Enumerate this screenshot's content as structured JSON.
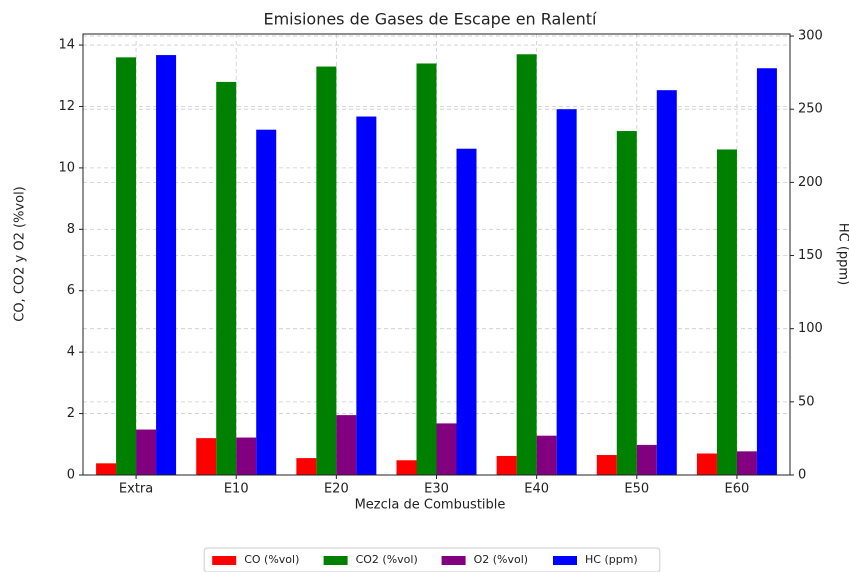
{
  "chart_data": {
    "type": "bar",
    "title": "Emisiones de Gases de Escape en Ralentí",
    "x_label": "Mezcla de Combustible",
    "y_label": "CO, CO2 y O2 (%vol)",
    "y2_label": "HC (ppm)",
    "categories": [
      "Extra",
      "E10",
      "E20",
      "E30",
      "E40",
      "E50",
      "E60"
    ],
    "series": [
      {
        "name": "CO (%vol)",
        "color": "#ff0000",
        "values": [
          0.38,
          1.2,
          0.55,
          0.48,
          0.62,
          0.65,
          0.7
        ]
      },
      {
        "name": "CO2 (%vol)",
        "color": "#008000",
        "values": [
          13.6,
          12.8,
          13.3,
          13.4,
          13.7,
          11.2,
          10.6
        ]
      },
      {
        "name": "O2 (%vol)",
        "color": "#800080",
        "values": [
          1.48,
          1.22,
          1.95,
          1.68,
          1.28,
          0.98,
          0.77
        ]
      },
      {
        "name": "HC (ppm)",
        "color": "#0000ff",
        "axis": "y2",
        "values": [
          287,
          236,
          245,
          223,
          250,
          263,
          278
        ]
      }
    ],
    "ylim": [
      0,
      14.36
    ],
    "yticks": [
      0,
      2,
      4,
      6,
      8,
      10,
      12,
      14
    ],
    "y2lim": [
      0,
      301.4
    ],
    "y2ticks": [
      0,
      50,
      100,
      150,
      200,
      250,
      300
    ],
    "grid": true,
    "legend": "bottom"
  }
}
